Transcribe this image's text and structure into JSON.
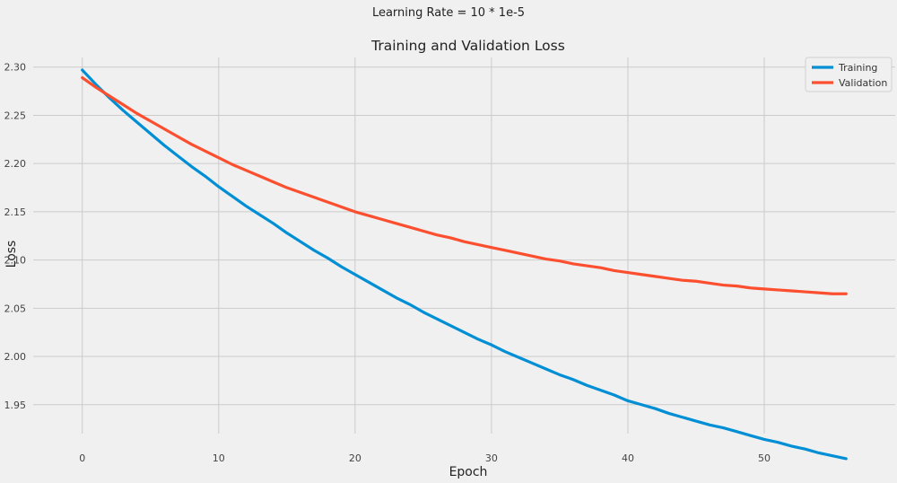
{
  "figure": {
    "suptitle": "Learning Rate = 10 * 1e-5"
  },
  "chart_data": {
    "type": "line",
    "title": "Training and Validation Loss",
    "xlabel": "Epoch",
    "ylabel": "Loss",
    "xlim": [
      -3.6,
      59.6
    ],
    "ylim": [
      1.92,
      2.31
    ],
    "xticks": [
      "0",
      "10",
      "20",
      "30",
      "40",
      "50"
    ],
    "yticks": [
      "1.95",
      "2.00",
      "2.05",
      "2.10",
      "2.15",
      "2.20",
      "2.25",
      "2.30"
    ],
    "grid": true,
    "legend_position": "top-right",
    "x": [
      0,
      1,
      2,
      3,
      4,
      5,
      6,
      7,
      8,
      9,
      10,
      11,
      12,
      13,
      14,
      15,
      16,
      17,
      18,
      19,
      20,
      21,
      22,
      23,
      24,
      25,
      26,
      27,
      28,
      29,
      30,
      31,
      32,
      33,
      34,
      35,
      36,
      37,
      38,
      39,
      40,
      41,
      42,
      43,
      44,
      45,
      46,
      47,
      48,
      49,
      50,
      51,
      52,
      53,
      54,
      55,
      56
    ],
    "series": [
      {
        "name": "Training",
        "color": "#008fd5",
        "values": [
          2.297,
          2.282,
          2.268,
          2.255,
          2.243,
          2.231,
          2.219,
          2.208,
          2.197,
          2.187,
          2.176,
          2.166,
          2.156,
          2.147,
          2.138,
          2.128,
          2.119,
          2.11,
          2.102,
          2.093,
          2.085,
          2.077,
          2.069,
          2.061,
          2.054,
          2.046,
          2.039,
          2.032,
          2.025,
          2.018,
          2.012,
          2.005,
          1.999,
          1.993,
          1.987,
          1.981,
          1.976,
          1.97,
          1.965,
          1.96,
          1.954,
          1.95,
          1.946,
          1.941,
          1.937,
          1.933,
          1.929,
          1.926,
          1.922,
          1.918,
          1.914,
          1.911,
          1.907,
          1.904,
          1.9,
          1.897,
          1.894
        ]
      },
      {
        "name": "Validation",
        "color": "#fc4f30",
        "values": [
          2.289,
          2.279,
          2.27,
          2.261,
          2.252,
          2.244,
          2.236,
          2.228,
          2.22,
          2.213,
          2.206,
          2.199,
          2.193,
          2.187,
          2.181,
          2.175,
          2.17,
          2.165,
          2.16,
          2.155,
          2.15,
          2.146,
          2.142,
          2.138,
          2.134,
          2.13,
          2.126,
          2.123,
          2.119,
          2.116,
          2.113,
          2.11,
          2.107,
          2.104,
          2.101,
          2.099,
          2.096,
          2.094,
          2.092,
          2.089,
          2.087,
          2.085,
          2.083,
          2.081,
          2.079,
          2.078,
          2.076,
          2.074,
          2.073,
          2.071,
          2.07,
          2.069,
          2.068,
          2.067,
          2.066,
          2.065,
          2.065
        ]
      }
    ]
  }
}
